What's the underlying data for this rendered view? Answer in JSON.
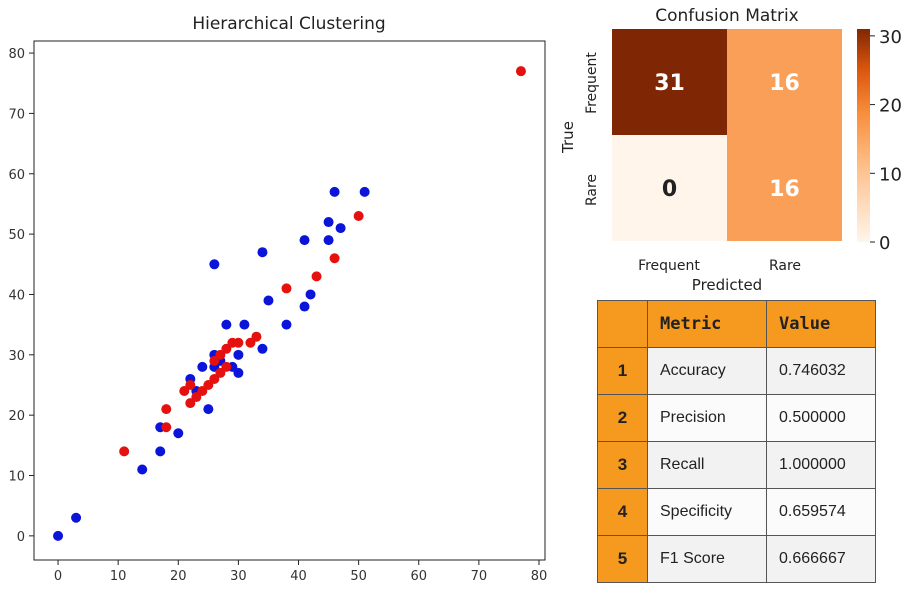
{
  "chart_data": [
    {
      "type": "scatter",
      "title": "Hierarchical Clustering",
      "xlabel": "",
      "ylabel": "",
      "xlim": [
        -4,
        81
      ],
      "ylim": [
        -4,
        82
      ],
      "x_ticks": [
        0,
        10,
        20,
        30,
        40,
        50,
        60,
        70,
        80
      ],
      "y_ticks": [
        0,
        10,
        20,
        30,
        40,
        50,
        60,
        70,
        80
      ],
      "series": [
        {
          "name": "Cluster blue",
          "color": "#0b14d9",
          "points": [
            [
              0,
              0
            ],
            [
              3,
              3
            ],
            [
              14,
              11
            ],
            [
              17,
              14
            ],
            [
              17,
              18
            ],
            [
              20,
              17
            ],
            [
              22,
              26
            ],
            [
              23,
              24
            ],
            [
              24,
              28
            ],
            [
              25,
              21
            ],
            [
              26,
              28
            ],
            [
              26,
              30
            ],
            [
              26,
              45
            ],
            [
              27,
              29
            ],
            [
              28,
              35
            ],
            [
              29,
              28
            ],
            [
              30,
              27
            ],
            [
              30,
              30
            ],
            [
              31,
              35
            ],
            [
              34,
              31
            ],
            [
              34,
              47
            ],
            [
              35,
              39
            ],
            [
              38,
              35
            ],
            [
              41,
              38
            ],
            [
              41,
              49
            ],
            [
              42,
              40
            ],
            [
              45,
              49
            ],
            [
              45,
              52
            ],
            [
              46,
              57
            ],
            [
              47,
              51
            ],
            [
              51,
              57
            ]
          ]
        },
        {
          "name": "Cluster red",
          "color": "#e4110f",
          "points": [
            [
              11,
              14
            ],
            [
              18,
              18
            ],
            [
              18,
              21
            ],
            [
              21,
              24
            ],
            [
              22,
              22
            ],
            [
              22,
              25
            ],
            [
              23,
              23
            ],
            [
              24,
              24
            ],
            [
              25,
              25
            ],
            [
              26,
              26
            ],
            [
              26,
              29
            ],
            [
              27,
              27
            ],
            [
              27,
              30
            ],
            [
              28,
              28
            ],
            [
              28,
              31
            ],
            [
              29,
              32
            ],
            [
              30,
              32
            ],
            [
              32,
              32
            ],
            [
              33,
              33
            ],
            [
              38,
              41
            ],
            [
              43,
              43
            ],
            [
              46,
              46
            ],
            [
              50,
              53
            ],
            [
              77,
              77
            ]
          ]
        }
      ]
    },
    {
      "type": "heatmap",
      "title": "Confusion Matrix",
      "xlabel": "Predicted",
      "ylabel": "True",
      "x_categories": [
        "Frequent",
        "Rare"
      ],
      "y_categories": [
        "Frequent",
        "Rare"
      ],
      "values": [
        [
          31,
          16
        ],
        [
          0,
          16
        ]
      ],
      "colorbar": {
        "min": 0,
        "max": 31,
        "ticks": [
          0,
          10,
          20,
          30
        ]
      },
      "colors": {
        "low": "#fff5eb",
        "mid": "#fd8d3c",
        "high": "#7f2704"
      }
    },
    {
      "type": "table",
      "columns": [
        "",
        "Metric",
        "Value"
      ],
      "rows": [
        [
          "1",
          "Accuracy",
          "0.746032"
        ],
        [
          "2",
          "Precision",
          "0.500000"
        ],
        [
          "3",
          "Recall",
          "1.000000"
        ],
        [
          "4",
          "Specificity",
          "0.659574"
        ],
        [
          "5",
          "F1 Score",
          "0.666667"
        ]
      ]
    }
  ],
  "colors": {
    "header_orange": "#f59a1e",
    "cell_grey": "#f2f2f2"
  }
}
